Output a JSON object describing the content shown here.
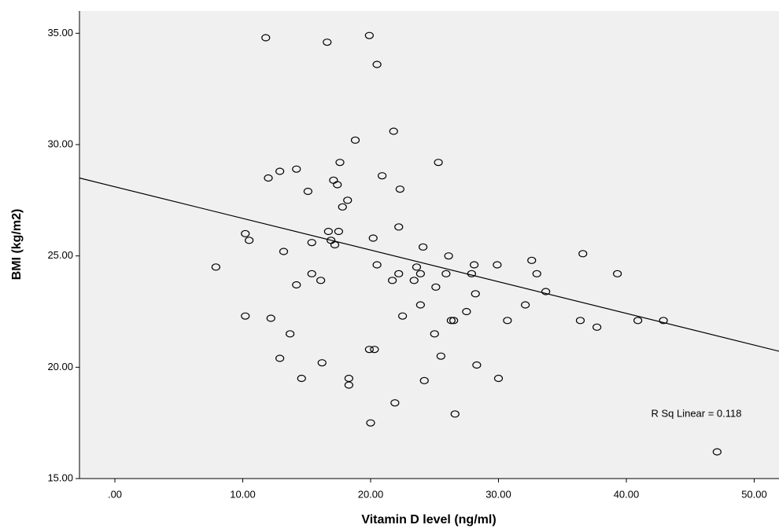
{
  "chart_data": {
    "type": "scatter",
    "x_label": "Vitamin D level (ng/ml)",
    "y_label": "BMI (kg/m2)",
    "annotation": "R Sq Linear = 0.118",
    "color": "#000000",
    "background": "#f0f0f0",
    "xlim": [
      -2.77,
      51.94
    ],
    "ylim": [
      15,
      36
    ],
    "xticks": [
      {
        "value": 0,
        "label": ".00"
      },
      {
        "value": 10,
        "label": "10.00"
      },
      {
        "value": 20,
        "label": "20.00"
      },
      {
        "value": 30,
        "label": "30.00"
      },
      {
        "value": 40,
        "label": "40.00"
      },
      {
        "value": 50,
        "label": "50.00"
      }
    ],
    "yticks": [
      {
        "value": 15,
        "label": "15.00"
      },
      {
        "value": 20,
        "label": "20.00"
      },
      {
        "value": 25,
        "label": "25.00"
      },
      {
        "value": 30,
        "label": "30.00"
      },
      {
        "value": 35,
        "label": "35.00"
      }
    ],
    "fit_line": {
      "x": [
        -2.77,
        51.94
      ],
      "y": [
        28.5,
        20.72
      ]
    },
    "x": [
      11.8,
      16.6,
      19.9,
      20.5,
      21.8,
      18.8,
      25.3,
      17.6,
      12.9,
      14.2,
      12.0,
      17.1,
      17.4,
      20.9,
      22.3,
      15.1,
      18.2,
      17.8,
      22.2,
      16.7,
      17.5,
      10.2,
      10.5,
      20.2,
      16.9,
      17.2,
      15.4,
      13.2,
      24.1,
      20.5,
      26.1,
      7.9,
      14.2,
      15.4,
      16.1,
      22.2,
      23.6,
      23.9,
      25.9,
      28.1,
      27.9,
      29.9,
      32.6,
      33.0,
      36.6,
      39.3,
      21.7,
      23.4,
      25.1,
      33.7,
      23.9,
      28.2,
      32.1,
      27.5,
      10.2,
      12.2,
      22.5,
      30.7,
      36.4,
      40.9,
      42.9,
      37.7,
      13.7,
      25.0,
      26.3,
      26.5,
      19.9,
      20.3,
      12.9,
      25.5,
      16.2,
      28.3,
      14.6,
      18.3,
      18.3,
      24.2,
      30.0,
      21.9,
      26.6,
      20.0,
      47.1
    ],
    "values": [
      34.8,
      34.6,
      34.9,
      33.6,
      30.6,
      30.2,
      29.2,
      29.2,
      28.8,
      28.9,
      28.5,
      28.4,
      28.2,
      28.6,
      28.0,
      27.9,
      27.5,
      27.2,
      26.3,
      26.1,
      26.1,
      26.0,
      25.7,
      25.8,
      25.7,
      25.5,
      25.6,
      25.2,
      25.4,
      24.6,
      25.0,
      24.5,
      23.7,
      24.2,
      23.9,
      24.2,
      24.5,
      24.2,
      24.2,
      24.6,
      24.2,
      24.6,
      24.8,
      24.2,
      25.1,
      24.2,
      23.9,
      23.9,
      23.6,
      23.4,
      22.8,
      23.3,
      22.8,
      22.5,
      22.3,
      22.2,
      22.3,
      22.1,
      22.1,
      22.1,
      22.1,
      21.8,
      21.5,
      21.5,
      22.1,
      22.1,
      20.8,
      20.8,
      20.4,
      20.5,
      20.2,
      20.1,
      19.5,
      19.5,
      19.2,
      19.4,
      19.5,
      18.4,
      17.9,
      17.5,
      16.2
    ]
  }
}
